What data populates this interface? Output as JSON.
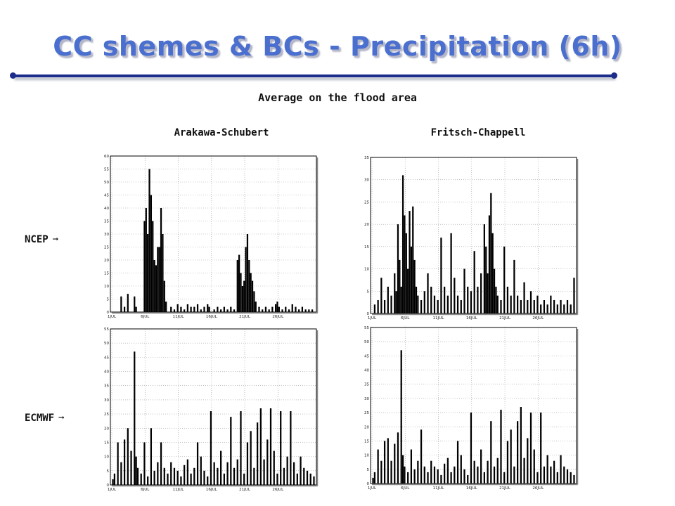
{
  "slide": {
    "title": "CC shemes & BCs - Precipitation (6h)",
    "subtitle": "Average on the flood area",
    "col_labels": [
      "Arakawa-Schubert",
      "Fritsch-Chappell"
    ],
    "row_labels": [
      "NCEP",
      "ECMWF"
    ],
    "arrow_glyph": "➞",
    "title_color": "#4a6fcf",
    "rule_color": "#1c2c8a"
  },
  "chart_data": [
    {
      "type": "bar",
      "row": "NCEP",
      "column": "Arakawa-Schubert",
      "ylim": [
        0,
        60
      ],
      "yticks": [
        0,
        5,
        10,
        15,
        20,
        25,
        30,
        35,
        40,
        45,
        50,
        55,
        60
      ],
      "xticks": [
        "1JUL",
        "6JUL",
        "11JUL",
        "16JUL",
        "21JUL",
        "26JUL"
      ],
      "n_steps": 124,
      "grid": true,
      "bars": [
        [
          6,
          6
        ],
        [
          8,
          2
        ],
        [
          10,
          7
        ],
        [
          14,
          6
        ],
        [
          15,
          2
        ],
        [
          20,
          35
        ],
        [
          21,
          40
        ],
        [
          22,
          30
        ],
        [
          23,
          55
        ],
        [
          24,
          45
        ],
        [
          25,
          35
        ],
        [
          26,
          20
        ],
        [
          27,
          18
        ],
        [
          28,
          25
        ],
        [
          29,
          25
        ],
        [
          30,
          40
        ],
        [
          31,
          30
        ],
        [
          32,
          12
        ],
        [
          33,
          4
        ],
        [
          36,
          2
        ],
        [
          38,
          1
        ],
        [
          40,
          3
        ],
        [
          42,
          2
        ],
        [
          44,
          1
        ],
        [
          46,
          3
        ],
        [
          48,
          2
        ],
        [
          50,
          2
        ],
        [
          52,
          3
        ],
        [
          54,
          1
        ],
        [
          56,
          2
        ],
        [
          58,
          3
        ],
        [
          59,
          2
        ],
        [
          62,
          1
        ],
        [
          64,
          2
        ],
        [
          66,
          1
        ],
        [
          68,
          2
        ],
        [
          70,
          1
        ],
        [
          72,
          2
        ],
        [
          74,
          1
        ],
        [
          76,
          20
        ],
        [
          77,
          22
        ],
        [
          78,
          15
        ],
        [
          79,
          10
        ],
        [
          80,
          12
        ],
        [
          81,
          25
        ],
        [
          82,
          30
        ],
        [
          83,
          20
        ],
        [
          84,
          15
        ],
        [
          85,
          12
        ],
        [
          86,
          8
        ],
        [
          87,
          4
        ],
        [
          89,
          2
        ],
        [
          91,
          1
        ],
        [
          93,
          2
        ],
        [
          95,
          1
        ],
        [
          97,
          2
        ],
        [
          99,
          3
        ],
        [
          100,
          4
        ],
        [
          101,
          2
        ],
        [
          103,
          1
        ],
        [
          105,
          2
        ],
        [
          107,
          1
        ],
        [
          109,
          3
        ],
        [
          111,
          2
        ],
        [
          113,
          1
        ],
        [
          115,
          2
        ],
        [
          117,
          1
        ],
        [
          119,
          1
        ],
        [
          121,
          1
        ]
      ]
    },
    {
      "type": "bar",
      "row": "NCEP",
      "column": "Fritsch-Chappell",
      "ylim": [
        0,
        35
      ],
      "yticks": [
        0,
        5,
        10,
        15,
        20,
        25,
        30,
        35
      ],
      "xticks": [
        "1JUL",
        "6JUL",
        "11JUL",
        "16JUL",
        "21JUL",
        "26JUL"
      ],
      "n_steps": 124,
      "grid": true,
      "bars": [
        [
          2,
          2
        ],
        [
          4,
          3
        ],
        [
          6,
          8
        ],
        [
          8,
          3
        ],
        [
          10,
          6
        ],
        [
          12,
          4
        ],
        [
          14,
          9
        ],
        [
          15,
          5
        ],
        [
          16,
          20
        ],
        [
          17,
          12
        ],
        [
          18,
          6
        ],
        [
          19,
          31
        ],
        [
          20,
          22
        ],
        [
          21,
          18
        ],
        [
          22,
          10
        ],
        [
          23,
          23
        ],
        [
          24,
          15
        ],
        [
          25,
          24
        ],
        [
          26,
          12
        ],
        [
          27,
          6
        ],
        [
          28,
          4
        ],
        [
          30,
          3
        ],
        [
          32,
          5
        ],
        [
          34,
          9
        ],
        [
          36,
          6
        ],
        [
          38,
          4
        ],
        [
          40,
          3
        ],
        [
          42,
          17
        ],
        [
          44,
          6
        ],
        [
          46,
          4
        ],
        [
          48,
          18
        ],
        [
          50,
          8
        ],
        [
          52,
          4
        ],
        [
          54,
          3
        ],
        [
          56,
          10
        ],
        [
          58,
          6
        ],
        [
          60,
          5
        ],
        [
          62,
          14
        ],
        [
          64,
          6
        ],
        [
          66,
          9
        ],
        [
          68,
          20
        ],
        [
          69,
          15
        ],
        [
          70,
          9
        ],
        [
          71,
          22
        ],
        [
          72,
          27
        ],
        [
          73,
          18
        ],
        [
          74,
          10
        ],
        [
          75,
          6
        ],
        [
          76,
          4
        ],
        [
          78,
          3
        ],
        [
          80,
          15
        ],
        [
          82,
          6
        ],
        [
          84,
          4
        ],
        [
          86,
          12
        ],
        [
          88,
          4
        ],
        [
          90,
          3
        ],
        [
          92,
          7
        ],
        [
          94,
          3
        ],
        [
          96,
          5
        ],
        [
          98,
          3
        ],
        [
          100,
          4
        ],
        [
          102,
          2
        ],
        [
          104,
          3
        ],
        [
          106,
          2
        ],
        [
          108,
          4
        ],
        [
          110,
          3
        ],
        [
          112,
          2
        ],
        [
          114,
          3
        ],
        [
          116,
          2
        ],
        [
          118,
          3
        ],
        [
          120,
          2
        ],
        [
          122,
          8
        ]
      ]
    },
    {
      "type": "bar",
      "row": "ECMWF",
      "column": "Arakawa-Schubert",
      "ylim": [
        0,
        55
      ],
      "yticks": [
        0,
        5,
        10,
        15,
        20,
        25,
        30,
        35,
        40,
        45,
        50,
        55
      ],
      "xticks": [
        "1JUL",
        "6JUL",
        "11JUL",
        "16JUL",
        "21JUL",
        "26JUL"
      ],
      "n_steps": 124,
      "grid": true,
      "bars": [
        [
          1,
          2
        ],
        [
          2,
          4
        ],
        [
          4,
          15
        ],
        [
          6,
          8
        ],
        [
          8,
          16
        ],
        [
          10,
          20
        ],
        [
          12,
          12
        ],
        [
          14,
          47
        ],
        [
          15,
          10
        ],
        [
          16,
          6
        ],
        [
          18,
          4
        ],
        [
          20,
          15
        ],
        [
          22,
          3
        ],
        [
          24,
          20
        ],
        [
          26,
          5
        ],
        [
          28,
          8
        ],
        [
          30,
          15
        ],
        [
          32,
          6
        ],
        [
          34,
          4
        ],
        [
          36,
          8
        ],
        [
          38,
          6
        ],
        [
          40,
          5
        ],
        [
          42,
          3
        ],
        [
          44,
          7
        ],
        [
          46,
          9
        ],
        [
          48,
          4
        ],
        [
          50,
          6
        ],
        [
          52,
          15
        ],
        [
          54,
          10
        ],
        [
          56,
          5
        ],
        [
          58,
          3
        ],
        [
          60,
          26
        ],
        [
          62,
          8
        ],
        [
          64,
          6
        ],
        [
          66,
          12
        ],
        [
          68,
          4
        ],
        [
          70,
          8
        ],
        [
          72,
          24
        ],
        [
          74,
          6
        ],
        [
          76,
          9
        ],
        [
          78,
          26
        ],
        [
          80,
          4
        ],
        [
          82,
          15
        ],
        [
          84,
          19
        ],
        [
          86,
          6
        ],
        [
          88,
          22
        ],
        [
          90,
          27
        ],
        [
          92,
          9
        ],
        [
          94,
          16
        ],
        [
          96,
          27
        ],
        [
          98,
          12
        ],
        [
          100,
          4
        ],
        [
          102,
          26
        ],
        [
          104,
          6
        ],
        [
          106,
          10
        ],
        [
          108,
          26
        ],
        [
          110,
          8
        ],
        [
          112,
          4
        ],
        [
          114,
          10
        ],
        [
          116,
          6
        ],
        [
          118,
          5
        ],
        [
          120,
          4
        ],
        [
          122,
          3
        ]
      ]
    },
    {
      "type": "bar",
      "row": "ECMWF",
      "column": "Fritsch-Chappell",
      "ylim": [
        0,
        55
      ],
      "yticks": [
        0,
        5,
        10,
        15,
        20,
        25,
        30,
        35,
        40,
        45,
        50,
        55
      ],
      "xticks": [
        "1JUL",
        "6JUL",
        "11JUL",
        "16JUL",
        "21JUL",
        "26JUL"
      ],
      "n_steps": 124,
      "grid": true,
      "bars": [
        [
          1,
          2
        ],
        [
          2,
          4
        ],
        [
          4,
          12
        ],
        [
          6,
          8
        ],
        [
          8,
          15
        ],
        [
          10,
          16
        ],
        [
          12,
          8
        ],
        [
          14,
          14
        ],
        [
          16,
          18
        ],
        [
          18,
          47
        ],
        [
          19,
          10
        ],
        [
          20,
          6
        ],
        [
          22,
          4
        ],
        [
          24,
          12
        ],
        [
          26,
          5
        ],
        [
          28,
          8
        ],
        [
          30,
          19
        ],
        [
          32,
          6
        ],
        [
          34,
          4
        ],
        [
          36,
          8
        ],
        [
          38,
          6
        ],
        [
          40,
          5
        ],
        [
          42,
          3
        ],
        [
          44,
          7
        ],
        [
          46,
          9
        ],
        [
          48,
          4
        ],
        [
          50,
          6
        ],
        [
          52,
          15
        ],
        [
          54,
          10
        ],
        [
          56,
          5
        ],
        [
          58,
          3
        ],
        [
          60,
          25
        ],
        [
          62,
          8
        ],
        [
          64,
          6
        ],
        [
          66,
          12
        ],
        [
          68,
          4
        ],
        [
          70,
          8
        ],
        [
          72,
          22
        ],
        [
          74,
          6
        ],
        [
          76,
          9
        ],
        [
          78,
          26
        ],
        [
          80,
          4
        ],
        [
          82,
          15
        ],
        [
          84,
          19
        ],
        [
          86,
          6
        ],
        [
          88,
          22
        ],
        [
          90,
          27
        ],
        [
          92,
          9
        ],
        [
          94,
          16
        ],
        [
          96,
          25
        ],
        [
          98,
          12
        ],
        [
          100,
          4
        ],
        [
          102,
          25
        ],
        [
          104,
          6
        ],
        [
          106,
          10
        ],
        [
          108,
          6
        ],
        [
          110,
          8
        ],
        [
          112,
          4
        ],
        [
          114,
          10
        ],
        [
          116,
          6
        ],
        [
          118,
          5
        ],
        [
          120,
          4
        ],
        [
          122,
          3
        ]
      ]
    }
  ]
}
